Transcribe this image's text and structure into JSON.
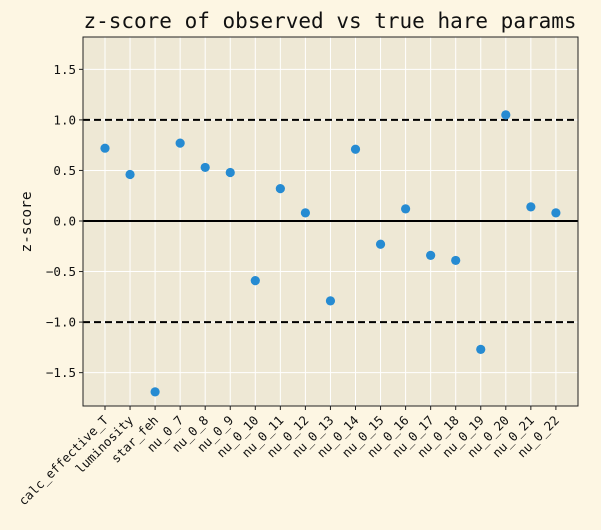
{
  "chart_data": {
    "type": "scatter",
    "title": "z-score of observed vs true hare params",
    "xlabel": "",
    "ylabel": "z-score",
    "categories": [
      "calc_effective_T",
      "luminosity",
      "star_feh",
      "nu_0_7",
      "nu_0_8",
      "nu_0_9",
      "nu_0_10",
      "nu_0_11",
      "nu_0_12",
      "nu_0_13",
      "nu_0_14",
      "nu_0_15",
      "nu_0_16",
      "nu_0_17",
      "nu_0_18",
      "nu_0_19",
      "nu_0_20",
      "nu_0_21",
      "nu_0_22"
    ],
    "values": [
      0.72,
      0.46,
      -1.69,
      0.77,
      0.53,
      0.48,
      -0.59,
      0.32,
      0.08,
      -0.79,
      0.71,
      -0.23,
      0.12,
      -0.34,
      -0.39,
      -1.27,
      1.05,
      0.14,
      0.08
    ],
    "ylim": [
      -1.83,
      1.82
    ],
    "yticks": [
      -1.5,
      -1.0,
      -0.5,
      0.0,
      0.5,
      1.0,
      1.5
    ],
    "ytick_labels": [
      "−1.5",
      "−1.0",
      "−0.5",
      "0.0",
      "0.5",
      "1.0",
      "1.5"
    ],
    "reference_lines": [
      {
        "y": 0,
        "style": "solid"
      },
      {
        "y": 1,
        "style": "dashed"
      },
      {
        "y": -1,
        "style": "dashed"
      }
    ],
    "grid": true,
    "colors": {
      "background": "#fdf6e3",
      "plot_area": "#eee8d5",
      "point": "#268bd2",
      "grid": "#ffffff",
      "line": "#000000"
    }
  }
}
